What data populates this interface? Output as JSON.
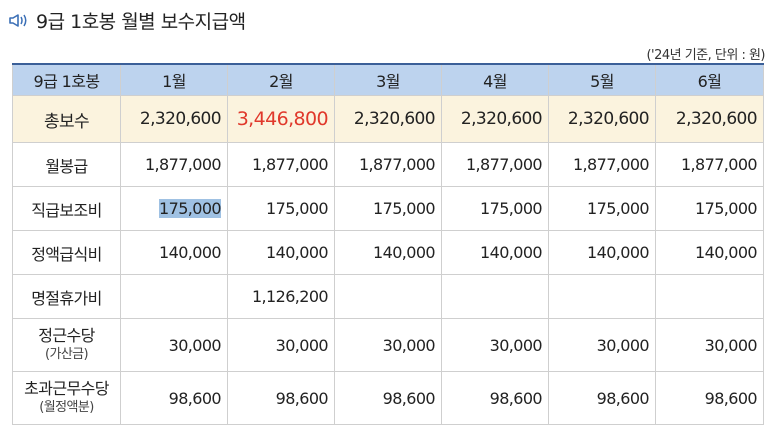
{
  "title": "9급 1호봉 월별 보수지급액",
  "unit_note": "('24년 기준, 단위 : 원)",
  "header": {
    "label": "9급 1호봉",
    "months": [
      "1월",
      "2월",
      "3월",
      "4월",
      "5월",
      "6월"
    ]
  },
  "rows": {
    "total": {
      "label": "총보수",
      "values": [
        "2,320,600",
        "3,446,800",
        "2,320,600",
        "2,320,600",
        "2,320,600",
        "2,320,600"
      ]
    },
    "base": {
      "label": "월봉급",
      "values": [
        "1,877,000",
        "1,877,000",
        "1,877,000",
        "1,877,000",
        "1,877,000",
        "1,877,000"
      ]
    },
    "duty": {
      "label": "직급보조비",
      "values": [
        "175,000",
        "175,000",
        "175,000",
        "175,000",
        "175,000",
        "175,000"
      ]
    },
    "meal": {
      "label": "정액급식비",
      "values": [
        "140,000",
        "140,000",
        "140,000",
        "140,000",
        "140,000",
        "140,000"
      ]
    },
    "holiday": {
      "label": "명절휴가비",
      "values": [
        "",
        "1,126,200",
        "",
        "",
        "",
        ""
      ]
    },
    "diligence": {
      "label": "정근수당",
      "sub": "(가산금)",
      "values": [
        "30,000",
        "30,000",
        "30,000",
        "30,000",
        "30,000",
        "30,000"
      ]
    },
    "overtime": {
      "label": "초과근무수당",
      "sub": "(월정액분)",
      "values": [
        "98,600",
        "98,600",
        "98,600",
        "98,600",
        "98,600",
        "98,600"
      ]
    }
  },
  "colors": {
    "header_bg": "#bdd3ee",
    "total_bg": "#fbf3de",
    "highlight": "#e0382b",
    "icon": "#3b6fb6"
  }
}
